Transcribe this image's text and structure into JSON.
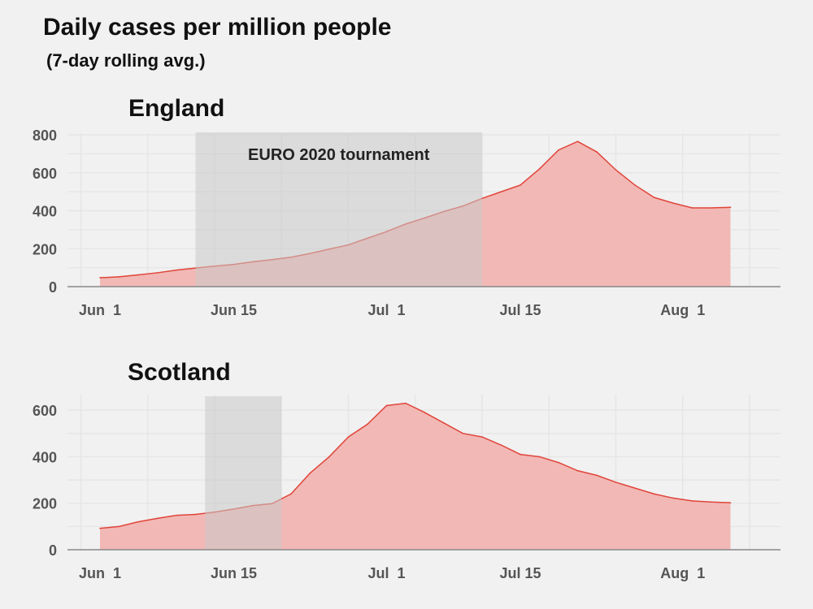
{
  "title": "Daily cases per million people",
  "subtitle": "(7-day rolling avg.)",
  "colors": {
    "area_fill": "#f2b8b5",
    "line": "#e0453a",
    "shade": "#dcdcdc",
    "grid": "#e6e6e6",
    "axis": "#888888",
    "background": "#f1f1f1"
  },
  "chart_data": [
    {
      "type": "area",
      "title": "England",
      "x_ticks": [
        "Jun  1",
        "Jun 15",
        "Jul  1",
        "Jul 15",
        "Aug  1"
      ],
      "x": [
        "2021-06-01",
        "2021-06-03",
        "2021-06-05",
        "2021-06-07",
        "2021-06-09",
        "2021-06-11",
        "2021-06-13",
        "2021-06-15",
        "2021-06-17",
        "2021-06-19",
        "2021-06-21",
        "2021-06-23",
        "2021-06-25",
        "2021-06-27",
        "2021-06-29",
        "2021-07-01",
        "2021-07-03",
        "2021-07-05",
        "2021-07-07",
        "2021-07-09",
        "2021-07-11",
        "2021-07-13",
        "2021-07-15",
        "2021-07-17",
        "2021-07-19",
        "2021-07-21",
        "2021-07-23",
        "2021-07-25",
        "2021-07-27",
        "2021-07-29",
        "2021-07-31",
        "2021-08-02",
        "2021-08-04",
        "2021-08-06"
      ],
      "values": [
        47,
        52,
        62,
        73,
        87,
        98,
        108,
        117,
        131,
        142,
        155,
        175,
        198,
        220,
        255,
        290,
        330,
        362,
        396,
        425,
        465,
        500,
        535,
        620,
        720,
        765,
        710,
        615,
        535,
        470,
        440,
        415,
        415,
        418
      ],
      "ylim": [
        0,
        800
      ],
      "y_ticks": [
        0,
        200,
        400,
        600,
        800
      ],
      "annotation": {
        "label": "EURO 2020 tournament",
        "start": "2021-06-11",
        "end": "2021-07-11"
      }
    },
    {
      "type": "area",
      "title": "Scotland",
      "x_ticks": [
        "Jun  1",
        "Jun 15",
        "Jul  1",
        "Jul 15",
        "Aug  1"
      ],
      "x": [
        "2021-06-01",
        "2021-06-03",
        "2021-06-05",
        "2021-06-07",
        "2021-06-09",
        "2021-06-11",
        "2021-06-13",
        "2021-06-15",
        "2021-06-17",
        "2021-06-19",
        "2021-06-21",
        "2021-06-23",
        "2021-06-25",
        "2021-06-27",
        "2021-06-29",
        "2021-07-01",
        "2021-07-03",
        "2021-07-05",
        "2021-07-07",
        "2021-07-09",
        "2021-07-11",
        "2021-07-13",
        "2021-07-15",
        "2021-07-17",
        "2021-07-19",
        "2021-07-21",
        "2021-07-23",
        "2021-07-25",
        "2021-07-27",
        "2021-07-29",
        "2021-07-31",
        "2021-08-02",
        "2021-08-04",
        "2021-08-06"
      ],
      "values": [
        92,
        100,
        120,
        135,
        148,
        152,
        162,
        175,
        190,
        198,
        240,
        330,
        400,
        485,
        540,
        620,
        630,
        590,
        545,
        500,
        485,
        450,
        410,
        400,
        375,
        340,
        320,
        290,
        265,
        240,
        222,
        210,
        205,
        202
      ],
      "ylim": [
        0,
        660
      ],
      "y_ticks": [
        0,
        200,
        400,
        600
      ],
      "annotation": {
        "label": "",
        "start": "2021-06-12",
        "end": "2021-06-20"
      }
    }
  ]
}
